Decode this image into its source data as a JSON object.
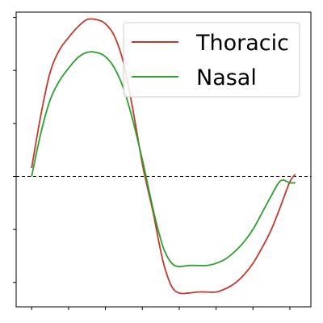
{
  "chart_data": {
    "type": "line",
    "title": "",
    "xlabel": "",
    "ylabel": "",
    "xlim": [
      -0.42,
      7.57
    ],
    "ylim": [
      -1.23,
      1.55
    ],
    "x_ticks": [
      0,
      1,
      2,
      3,
      4,
      5,
      6,
      7
    ],
    "y_ticks": [
      -1,
      -0.5,
      0,
      0.5,
      1,
      1.5
    ],
    "tick_labels_visible": false,
    "grid": false,
    "reference_line": {
      "y": 0,
      "style": "dashed",
      "color": "#000000"
    },
    "legend": {
      "position": "top-right"
    },
    "series": [
      {
        "name": "Thoracic",
        "color": "#c0392b",
        "x": [
          0,
          0.25,
          0.5,
          0.75,
          1.0,
          1.25,
          1.5,
          1.75,
          2.0,
          2.25,
          2.5,
          2.75,
          3.0,
          3.15,
          3.3,
          3.45,
          3.6,
          3.8,
          4.0,
          4.25,
          4.5,
          4.75,
          5.0,
          5.25,
          5.5,
          5.75,
          6.0,
          6.25,
          6.5,
          6.75,
          7.0,
          7.15
        ],
        "y": [
          0.08,
          0.58,
          0.98,
          1.19,
          1.31,
          1.41,
          1.48,
          1.48,
          1.44,
          1.32,
          1.06,
          0.62,
          0.12,
          -0.12,
          -0.35,
          -0.62,
          -0.85,
          -1.04,
          -1.1,
          -1.1,
          -1.09,
          -1.09,
          -1.09,
          -1.06,
          -1.01,
          -0.93,
          -0.82,
          -0.67,
          -0.5,
          -0.28,
          -0.05,
          0.02
        ]
      },
      {
        "name": "Nasal",
        "color": "#2ca02c",
        "x": [
          0,
          0.25,
          0.5,
          0.75,
          1.0,
          1.25,
          1.5,
          1.75,
          2.0,
          2.25,
          2.5,
          2.75,
          3.0,
          3.15,
          3.3,
          3.45,
          3.6,
          3.8,
          4.0,
          4.25,
          4.5,
          4.75,
          5.0,
          5.25,
          5.5,
          5.75,
          6.0,
          6.25,
          6.5,
          6.75,
          7.0,
          7.15
        ],
        "y": [
          0.0,
          0.41,
          0.72,
          0.9,
          1.02,
          1.12,
          1.17,
          1.17,
          1.13,
          1.02,
          0.82,
          0.52,
          0.16,
          -0.08,
          -0.32,
          -0.53,
          -0.7,
          -0.82,
          -0.85,
          -0.84,
          -0.84,
          -0.84,
          -0.82,
          -0.78,
          -0.71,
          -0.62,
          -0.5,
          -0.34,
          -0.18,
          -0.04,
          -0.06,
          -0.06
        ]
      }
    ]
  }
}
